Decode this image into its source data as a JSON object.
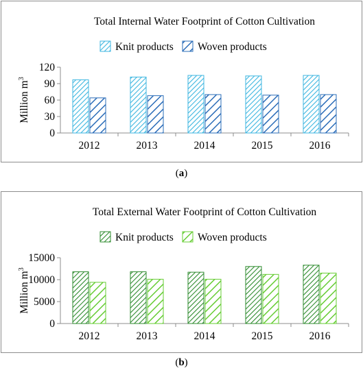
{
  "chart_data": [
    {
      "type": "bar",
      "title": "Total Internal Water Footprint of Cotton Cultivation",
      "ylabel": "Million m",
      "ylabel_sup": "3",
      "categories": [
        "2012",
        "2013",
        "2014",
        "2015",
        "2016"
      ],
      "series": [
        {
          "name": "Knit products",
          "values": [
            97,
            102,
            105,
            104,
            105
          ]
        },
        {
          "name": "Woven products",
          "values": [
            64,
            68,
            70,
            69,
            70
          ]
        }
      ],
      "ylim": [
        0,
        120
      ],
      "yticks": [
        "0",
        "30",
        "60",
        "90",
        "120"
      ],
      "colors": {
        "knit": "#3cb6e0",
        "woven": "#2a6cb8"
      },
      "legend": "top",
      "grid": false
    },
    {
      "type": "bar",
      "title": "Total External Water Footprint of Cotton Cultivation",
      "ylabel": "Million m",
      "ylabel_sup": "3",
      "categories": [
        "2012",
        "2013",
        "2014",
        "2015",
        "2016"
      ],
      "series": [
        {
          "name": "Knit products",
          "values": [
            11800,
            11800,
            11700,
            13000,
            13300
          ]
        },
        {
          "name": "Woven products",
          "values": [
            9400,
            10100,
            10100,
            11200,
            11500
          ]
        }
      ],
      "ylim": [
        0,
        15000
      ],
      "yticks": [
        "0",
        "5000",
        "10000",
        "15000"
      ],
      "colors": {
        "knit": "#2e8b2e",
        "woven": "#66cc33"
      },
      "legend": "top",
      "grid": false
    }
  ],
  "captions": {
    "a": "a",
    "b": "b"
  }
}
